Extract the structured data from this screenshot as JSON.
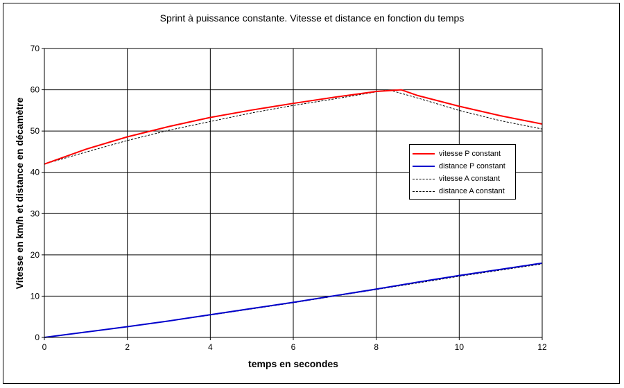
{
  "chart_data": {
    "type": "line",
    "title": "Sprint à puissance constante. Vitesse et distance en fonction du temps",
    "xlabel": "temps en secondes",
    "ylabel": "Vitesse en km/h et distance en décamètre",
    "xlim": [
      0,
      12
    ],
    "ylim": [
      0,
      70
    ],
    "xticks": [
      0,
      2,
      4,
      6,
      8,
      10,
      12
    ],
    "yticks": [
      0,
      10,
      20,
      30,
      40,
      50,
      60,
      70
    ],
    "grid": true,
    "legend_position": "right",
    "series": [
      {
        "name": "vitesse P constant",
        "color": "#ff0000",
        "style": "solid",
        "x": [
          0,
          1,
          2,
          3,
          4,
          5,
          6,
          7,
          8,
          8.6,
          9,
          10,
          11,
          12
        ],
        "y": [
          42,
          45.6,
          48.6,
          51.1,
          53.3,
          55.1,
          56.7,
          58.2,
          59.6,
          60,
          58.6,
          56,
          53.7,
          51.7
        ]
      },
      {
        "name": "distance P constant",
        "color": "#0000cc",
        "style": "solid",
        "x": [
          0,
          1,
          2,
          3,
          4,
          5,
          6,
          7,
          8,
          9,
          10,
          11,
          12
        ],
        "y": [
          0,
          1.3,
          2.6,
          4,
          5.5,
          7,
          8.5,
          10.1,
          11.7,
          13.4,
          15,
          16.5,
          18
        ]
      },
      {
        "name": "vitesse A constant",
        "color": "#000000",
        "style": "dashed",
        "x": [
          0,
          1,
          2,
          3,
          4,
          5,
          6,
          7,
          8,
          8.3,
          9,
          10,
          11,
          12
        ],
        "y": [
          42,
          44.9,
          47.7,
          50.2,
          52.3,
          54.4,
          56.2,
          57.8,
          59.5,
          60,
          58,
          55,
          52.5,
          50.5
        ]
      },
      {
        "name": "distance A constant",
        "color": "#000000",
        "style": "dashed",
        "x": [
          0,
          1,
          2,
          3,
          4,
          5,
          6,
          7,
          8,
          9,
          10,
          11,
          12
        ],
        "y": [
          0,
          1.3,
          2.6,
          4,
          5.4,
          6.9,
          8.4,
          10,
          11.6,
          13.2,
          14.8,
          16.3,
          17.8
        ]
      }
    ]
  }
}
